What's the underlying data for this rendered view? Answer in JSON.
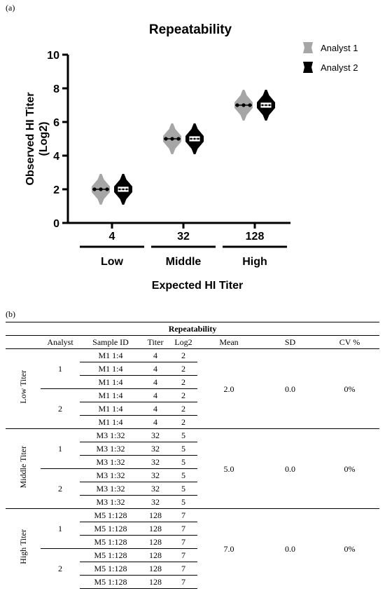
{
  "panel_a": {
    "label": "(a)"
  },
  "panel_b": {
    "label": "(b)"
  },
  "chart_data": {
    "type": "violin",
    "title": "Repeatability",
    "xlabel": "Expected HI Titer",
    "ylabel": "Observed HI Titer (Log2)",
    "ylabel_lines": [
      "Observed HI Titer",
      "(Log2)"
    ],
    "ylim": [
      0,
      10
    ],
    "yticks": [
      0,
      2,
      4,
      6,
      8,
      10
    ],
    "categories": [
      "4",
      "32",
      "128"
    ],
    "category_groups": [
      "Low",
      "Middle",
      "High"
    ],
    "legend_position": "top-right",
    "grid": false,
    "series": [
      {
        "name": "Analyst 1",
        "color": "#a6a6a6",
        "values": [
          2,
          5,
          7
        ]
      },
      {
        "name": "Analyst 2",
        "color": "#000000",
        "values": [
          2,
          5,
          7
        ]
      }
    ]
  },
  "table": {
    "title": "Repeatability",
    "headers": [
      "Analyst",
      "Sample ID",
      "Titer",
      "Log2",
      "Mean",
      "SD",
      "CV %"
    ],
    "groups": [
      {
        "name": "Low Titer",
        "mean": "2.0",
        "sd": "0.0",
        "cv": "0%",
        "analysts": [
          {
            "analyst": "1",
            "rows": [
              [
                "M1 1:4",
                "4",
                "2"
              ],
              [
                "M1 1:4",
                "4",
                "2"
              ],
              [
                "M1 1:4",
                "4",
                "2"
              ]
            ]
          },
          {
            "analyst": "2",
            "rows": [
              [
                "M1 1:4",
                "4",
                "2"
              ],
              [
                "M1 1:4",
                "4",
                "2"
              ],
              [
                "M1 1:4",
                "4",
                "2"
              ]
            ]
          }
        ]
      },
      {
        "name": "Middle Titer",
        "mean": "5.0",
        "sd": "0.0",
        "cv": "0%",
        "analysts": [
          {
            "analyst": "1",
            "rows": [
              [
                "M3 1:32",
                "32",
                "5"
              ],
              [
                "M3 1:32",
                "32",
                "5"
              ],
              [
                "M3 1:32",
                "32",
                "5"
              ]
            ]
          },
          {
            "analyst": "2",
            "rows": [
              [
                "M3 1:32",
                "32",
                "5"
              ],
              [
                "M3 1:32",
                "32",
                "5"
              ],
              [
                "M3 1:32",
                "32",
                "5"
              ]
            ]
          }
        ]
      },
      {
        "name": "High Titer",
        "mean": "7.0",
        "sd": "0.0",
        "cv": "0%",
        "analysts": [
          {
            "analyst": "1",
            "rows": [
              [
                "M5 1:128",
                "128",
                "7"
              ],
              [
                "M5 1:128",
                "128",
                "7"
              ],
              [
                "M5 1:128",
                "128",
                "7"
              ]
            ]
          },
          {
            "analyst": "2",
            "rows": [
              [
                "M5 1:128",
                "128",
                "7"
              ],
              [
                "M5 1:128",
                "128",
                "7"
              ],
              [
                "M5 1:128",
                "128",
                "7"
              ]
            ]
          }
        ]
      }
    ]
  }
}
